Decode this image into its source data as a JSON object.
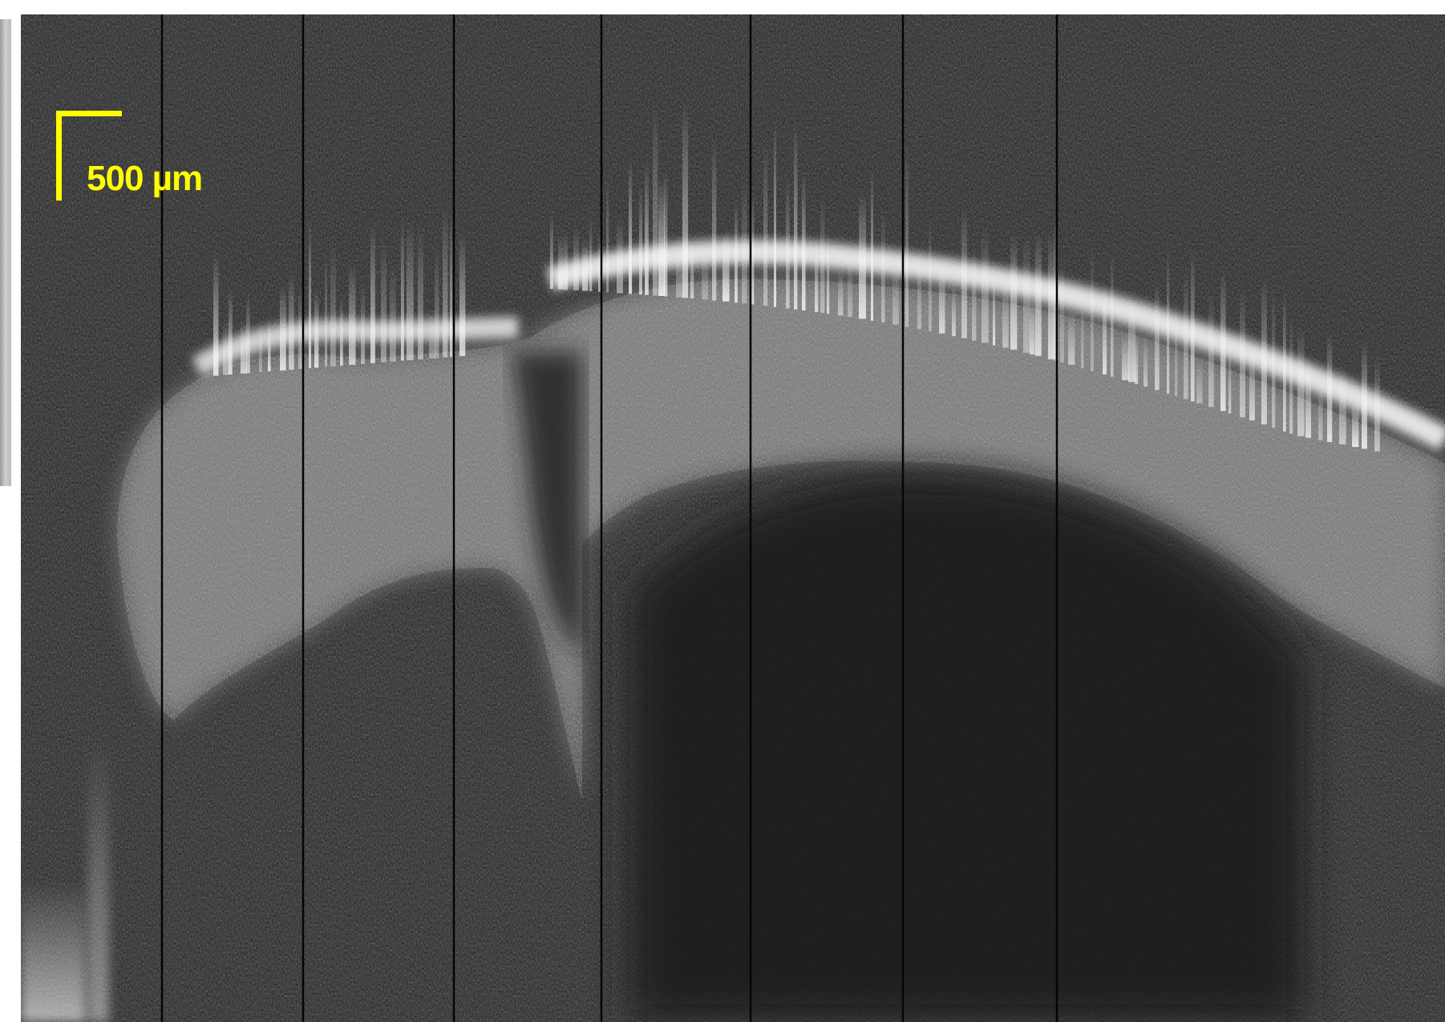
{
  "figure": {
    "scale_bar": {
      "label": "500 µm",
      "color": "#ffff00"
    },
    "colors": {
      "background": "#1b1b1b",
      "tissue_highlight": "#ffffff",
      "stripe_lines": "#050505"
    }
  }
}
